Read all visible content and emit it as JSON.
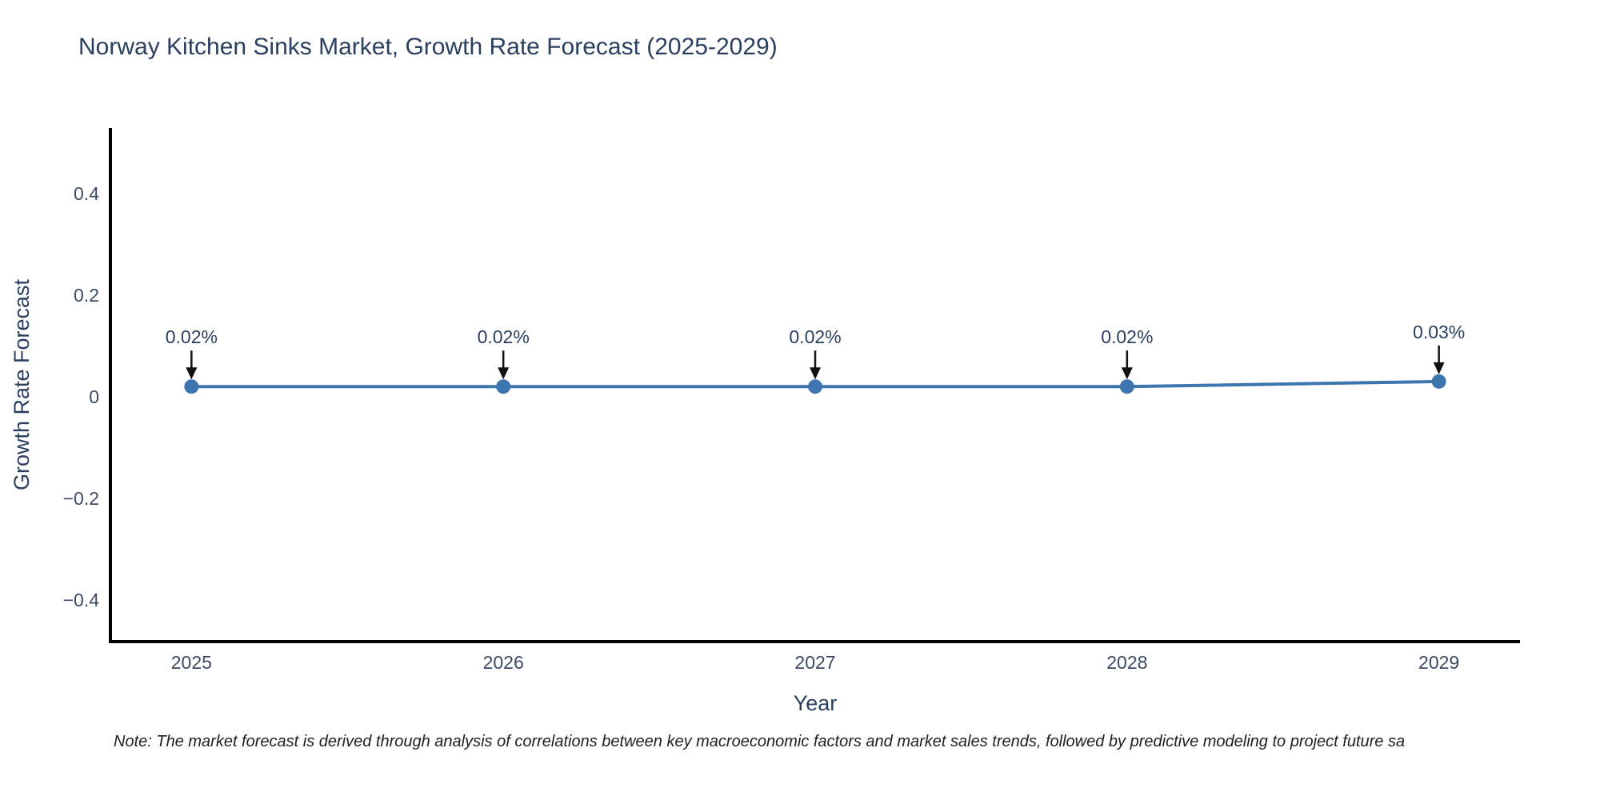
{
  "page": {
    "title": "Norway Kitchen Sinks Market, Growth Rate Forecast (2025-2029)",
    "note": "Note: The market forecast is derived through analysis of correlations between key macroeconomic factors and market sales trends, followed by predictive modeling to project future sa"
  },
  "colors": {
    "accent": "#3d76ae",
    "text": "#2a3f5f",
    "tick_text": "#3b4a63",
    "axis": "#000000",
    "arrow": "#111111",
    "background": "#ffffff"
  },
  "chart_data": {
    "type": "line",
    "title": "Norway Kitchen Sinks Market, Growth Rate Forecast (2025-2029)",
    "xlabel": "Year",
    "ylabel": "Growth Rate Forecast",
    "x": [
      2025,
      2026,
      2027,
      2028,
      2029
    ],
    "series": [
      {
        "name": "Growth Rate Forecast",
        "values": [
          0.02,
          0.02,
          0.02,
          0.02,
          0.03
        ]
      }
    ],
    "point_labels": [
      "0.02%",
      "0.02%",
      "0.02%",
      "0.02%",
      "0.03%"
    ],
    "xticks": {
      "values": [
        2025,
        2026,
        2027,
        2028,
        2029
      ],
      "labels": [
        "2025",
        "2026",
        "2027",
        "2028",
        "2029"
      ]
    },
    "yticks": {
      "values": [
        0.4,
        0.2,
        0,
        -0.2,
        -0.4
      ],
      "labels": [
        "0.4",
        "0.2",
        "0",
        "−0.2",
        "−0.4"
      ]
    },
    "xlim": [
      2024.74,
      2029.26
    ],
    "ylim": [
      -0.482,
      0.529
    ],
    "grid": false,
    "legend": false,
    "marker": "circle",
    "annotation_arrows": true
  }
}
